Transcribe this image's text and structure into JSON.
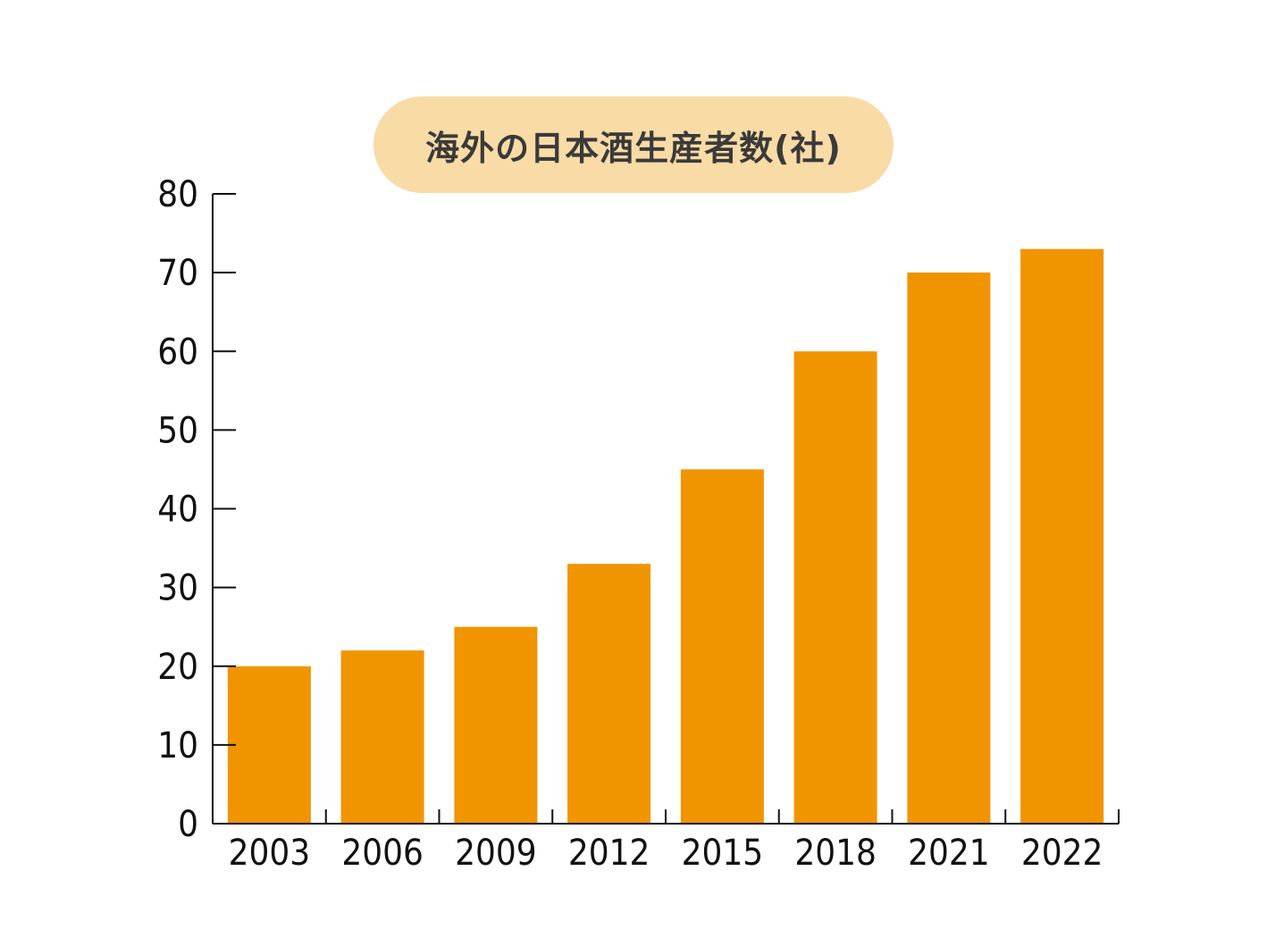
{
  "chart_data": {
    "type": "bar",
    "title": "海外の日本酒生産者数(社)",
    "categories": [
      "2003",
      "2006",
      "2009",
      "2012",
      "2015",
      "2018",
      "2021",
      "2022"
    ],
    "values": [
      20,
      22,
      25,
      33,
      45,
      60,
      70,
      73
    ],
    "xlabel": "",
    "ylabel": "",
    "ylim": [
      0,
      80
    ],
    "yticks": [
      0,
      10,
      20,
      30,
      40,
      50,
      60,
      70,
      80
    ],
    "grid": false,
    "legend": "none"
  },
  "colors": {
    "bar": "#f09500",
    "title_background": "#f9dba6",
    "axis": "#111111"
  }
}
